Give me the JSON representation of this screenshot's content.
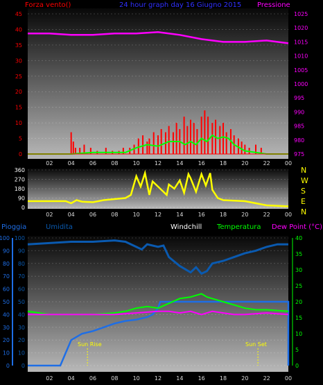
{
  "colors": {
    "wind": "#ff0000",
    "gust": "#00ff00",
    "pressure": "#ff00ff",
    "direction": "#ffff00",
    "rain": "#1e6ee6",
    "humidity": "#0a5ab0",
    "temperature": "#00ff00",
    "dewpoint": "#ff00ff",
    "white": "#ffffff",
    "title": "#3030ff"
  },
  "header": {
    "wind_title": "Forza vento()",
    "graph_title": "24 hour graph day 16 Giugno 2015",
    "pressure_title": "Pressione"
  },
  "dir_labels": [
    "N",
    "W",
    "S",
    "E",
    "N"
  ],
  "bottom_header": {
    "rain": "Pioggia",
    "humidity": "Umidita",
    "windchill": "Windchill",
    "temperature": "Temperatura",
    "dewpoint": "Dew Point (°C)"
  },
  "annotations": {
    "sunrise": "Sun Rise",
    "sunset": "Sun Set"
  },
  "chart_data": [
    {
      "type": "bar",
      "title": "24 hour graph day 16 Giugno 2015",
      "ylabel": "Forza vento()",
      "y2label": "Pressione",
      "xlim": [
        0,
        24
      ],
      "x_ticks": [
        "02",
        "04",
        "06",
        "08",
        "10",
        "12",
        "14",
        "16",
        "18",
        "20",
        "22",
        "00"
      ],
      "ylim": [
        0,
        45
      ],
      "y_ticks": [
        0,
        5,
        10,
        15,
        20,
        25,
        30,
        35,
        40,
        45
      ],
      "y2lim": [
        975,
        1025
      ],
      "y2_ticks": [
        975,
        980,
        985,
        990,
        995,
        1000,
        1005,
        1010,
        1015,
        1020,
        1025
      ],
      "wind_bars": [
        {
          "x": 4.0,
          "v": 7
        },
        {
          "x": 4.2,
          "v": 4
        },
        {
          "x": 4.4,
          "v": 2
        },
        {
          "x": 4.8,
          "v": 2
        },
        {
          "x": 5.2,
          "v": 3
        },
        {
          "x": 5.8,
          "v": 2
        },
        {
          "x": 6.4,
          "v": 1
        },
        {
          "x": 7.2,
          "v": 2
        },
        {
          "x": 7.8,
          "v": 1
        },
        {
          "x": 8.4,
          "v": 1
        },
        {
          "x": 8.8,
          "v": 2
        },
        {
          "x": 9.4,
          "v": 2
        },
        {
          "x": 9.8,
          "v": 3
        },
        {
          "x": 10.2,
          "v": 5
        },
        {
          "x": 10.6,
          "v": 6
        },
        {
          "x": 11.0,
          "v": 4
        },
        {
          "x": 11.2,
          "v": 5
        },
        {
          "x": 11.6,
          "v": 7
        },
        {
          "x": 12.0,
          "v": 6
        },
        {
          "x": 12.3,
          "v": 8
        },
        {
          "x": 12.7,
          "v": 7
        },
        {
          "x": 13.0,
          "v": 9
        },
        {
          "x": 13.4,
          "v": 7
        },
        {
          "x": 13.7,
          "v": 10
        },
        {
          "x": 14.0,
          "v": 8
        },
        {
          "x": 14.4,
          "v": 12
        },
        {
          "x": 14.7,
          "v": 9
        },
        {
          "x": 15.0,
          "v": 11
        },
        {
          "x": 15.3,
          "v": 10
        },
        {
          "x": 15.6,
          "v": 8
        },
        {
          "x": 16.0,
          "v": 12
        },
        {
          "x": 16.3,
          "v": 14
        },
        {
          "x": 16.6,
          "v": 12
        },
        {
          "x": 17.0,
          "v": 10
        },
        {
          "x": 17.3,
          "v": 11
        },
        {
          "x": 17.7,
          "v": 9
        },
        {
          "x": 18.0,
          "v": 10
        },
        {
          "x": 18.3,
          "v": 7
        },
        {
          "x": 18.7,
          "v": 8
        },
        {
          "x": 19.0,
          "v": 6
        },
        {
          "x": 19.4,
          "v": 5
        },
        {
          "x": 19.7,
          "v": 4
        },
        {
          "x": 20.0,
          "v": 3
        },
        {
          "x": 20.4,
          "v": 2
        },
        {
          "x": 21.0,
          "v": 3
        },
        {
          "x": 21.5,
          "v": 2
        }
      ],
      "gust_series": [
        [
          0,
          0
        ],
        [
          4,
          0
        ],
        [
          6,
          0.5
        ],
        [
          8,
          0.5
        ],
        [
          9,
          0.5
        ],
        [
          10,
          2
        ],
        [
          11,
          3
        ],
        [
          12,
          2.5
        ],
        [
          13,
          4
        ],
        [
          14,
          4
        ],
        [
          14.5,
          3
        ],
        [
          15,
          4
        ],
        [
          15.5,
          3
        ],
        [
          16,
          5
        ],
        [
          16.5,
          4
        ],
        [
          17,
          6
        ],
        [
          17.5,
          5
        ],
        [
          18,
          5.5
        ],
        [
          18.5,
          5
        ],
        [
          19,
          3
        ],
        [
          20,
          1
        ],
        [
          21,
          0.5
        ],
        [
          22,
          0
        ],
        [
          24,
          0
        ]
      ],
      "pressure_series": [
        [
          0,
          1018
        ],
        [
          2,
          1018
        ],
        [
          4,
          1017.5
        ],
        [
          6,
          1017.5
        ],
        [
          8,
          1018
        ],
        [
          10,
          1018
        ],
        [
          12,
          1018.5
        ],
        [
          14,
          1017.5
        ],
        [
          16,
          1016
        ],
        [
          18,
          1015
        ],
        [
          20,
          1015
        ],
        [
          22,
          1015.5
        ],
        [
          24,
          1014.5
        ]
      ]
    },
    {
      "type": "line",
      "title": "",
      "ylabel": "",
      "xlim": [
        0,
        24
      ],
      "ylim": [
        0,
        360
      ],
      "y_ticks": [
        0,
        90,
        180,
        270,
        360
      ],
      "x_ticks": [
        "02",
        "04",
        "06",
        "08",
        "10",
        "12",
        "14",
        "16",
        "18",
        "20",
        "22",
        "00"
      ],
      "direction_series": [
        [
          0,
          60
        ],
        [
          2,
          60
        ],
        [
          3,
          60
        ],
        [
          3.5,
          60
        ],
        [
          4,
          40
        ],
        [
          4.5,
          70
        ],
        [
          5,
          55
        ],
        [
          6,
          50
        ],
        [
          7,
          70
        ],
        [
          8,
          80
        ],
        [
          9,
          90
        ],
        [
          9.5,
          120
        ],
        [
          10,
          300
        ],
        [
          10.4,
          200
        ],
        [
          10.8,
          330
        ],
        [
          11.2,
          120
        ],
        [
          11.5,
          250
        ],
        [
          12,
          200
        ],
        [
          12.4,
          160
        ],
        [
          12.8,
          120
        ],
        [
          13,
          220
        ],
        [
          13.5,
          180
        ],
        [
          14,
          260
        ],
        [
          14.4,
          140
        ],
        [
          14.8,
          320
        ],
        [
          15,
          280
        ],
        [
          15.5,
          150
        ],
        [
          16,
          320
        ],
        [
          16.4,
          210
        ],
        [
          16.8,
          330
        ],
        [
          17,
          170
        ],
        [
          17.5,
          90
        ],
        [
          18,
          70
        ],
        [
          20,
          60
        ],
        [
          21,
          40
        ],
        [
          22,
          20
        ],
        [
          23,
          15
        ],
        [
          24,
          10
        ]
      ]
    },
    {
      "type": "line",
      "title": "",
      "ylabel": "Pioggia",
      "y2label": "Dew Point (°C)",
      "xlim": [
        0,
        24
      ],
      "ylim": [
        0,
        100
      ],
      "y_ticks": [
        0,
        10,
        20,
        30,
        40,
        50,
        60,
        70,
        80,
        90,
        100
      ],
      "y2lim": [
        0,
        40
      ],
      "y2_ticks": [
        0,
        5,
        10,
        15,
        20,
        25,
        30,
        35,
        40
      ],
      "x_ticks": [
        "02",
        "04",
        "06",
        "08",
        "10",
        "12",
        "14",
        "16",
        "18",
        "20",
        "22",
        "00"
      ],
      "humidity_series": [
        [
          0,
          95
        ],
        [
          2,
          96
        ],
        [
          4,
          97
        ],
        [
          6,
          97
        ],
        [
          8,
          98
        ],
        [
          9,
          97
        ],
        [
          10,
          93
        ],
        [
          10.5,
          91
        ],
        [
          11,
          95
        ],
        [
          12,
          93
        ],
        [
          12.5,
          94
        ],
        [
          13,
          85
        ],
        [
          14,
          78
        ],
        [
          15,
          73
        ],
        [
          15.5,
          77
        ],
        [
          16,
          72
        ],
        [
          16.5,
          74
        ],
        [
          17,
          80
        ],
        [
          18,
          82
        ],
        [
          19,
          85
        ],
        [
          20,
          88
        ],
        [
          21,
          90
        ],
        [
          22,
          93
        ],
        [
          23,
          95
        ],
        [
          24,
          95
        ]
      ],
      "rain_series": [
        [
          0,
          0
        ],
        [
          3,
          0
        ],
        [
          3.5,
          10
        ],
        [
          4,
          20
        ],
        [
          5,
          25
        ],
        [
          6,
          27
        ],
        [
          7,
          30
        ],
        [
          8,
          33
        ],
        [
          9,
          35
        ],
        [
          10,
          36
        ],
        [
          11,
          38
        ],
        [
          11.5,
          40
        ],
        [
          12,
          45
        ],
        [
          12.2,
          50
        ],
        [
          16,
          50
        ],
        [
          20,
          50
        ],
        [
          24,
          50
        ],
        [
          24,
          0
        ]
      ],
      "temperature_series": [
        [
          0,
          17
        ],
        [
          2,
          16
        ],
        [
          4,
          16
        ],
        [
          6,
          16
        ],
        [
          8,
          16.5
        ],
        [
          9,
          17
        ],
        [
          10,
          18
        ],
        [
          11,
          18.5
        ],
        [
          12,
          18
        ],
        [
          13,
          19.5
        ],
        [
          14,
          21
        ],
        [
          15,
          21.5
        ],
        [
          15.5,
          22
        ],
        [
          16,
          22.5
        ],
        [
          16.5,
          21.5
        ],
        [
          17,
          21
        ],
        [
          18,
          20
        ],
        [
          19,
          19
        ],
        [
          20,
          18
        ],
        [
          21,
          17.5
        ],
        [
          22,
          17.5
        ],
        [
          24,
          17
        ]
      ],
      "dewpoint_series": [
        [
          0,
          16
        ],
        [
          2,
          16
        ],
        [
          4,
          16
        ],
        [
          6,
          16
        ],
        [
          8,
          16
        ],
        [
          10,
          16.5
        ],
        [
          12,
          17
        ],
        [
          13,
          17
        ],
        [
          14,
          16.5
        ],
        [
          15,
          17
        ],
        [
          16,
          16
        ],
        [
          17,
          17
        ],
        [
          18,
          16.5
        ],
        [
          19,
          16
        ],
        [
          20,
          16
        ],
        [
          22,
          16.5
        ],
        [
          24,
          16
        ]
      ],
      "sunrise_x": 5.5,
      "sunset_x": 21.2
    }
  ]
}
